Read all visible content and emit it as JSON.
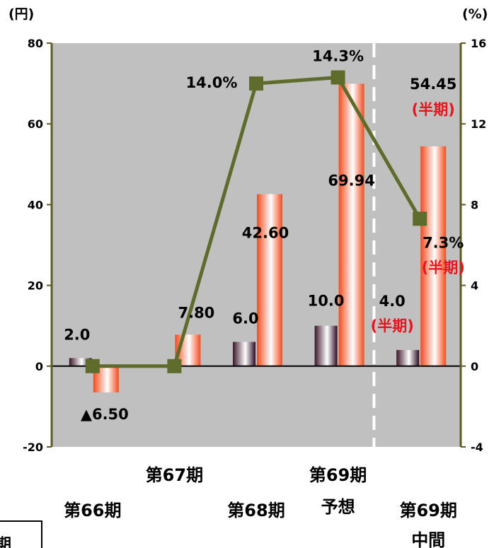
{
  "chart_data": {
    "type": "bar",
    "left_unit": "(円)",
    "right_unit": "(%)",
    "y_left": {
      "min": -20,
      "max": 80,
      "ticks": [
        "-20",
        "0",
        "20",
        "40",
        "60",
        "80"
      ]
    },
    "y_right": {
      "min": -4,
      "max": 16,
      "ticks": [
        "-4",
        "0",
        "4",
        "8",
        "12",
        "16"
      ]
    },
    "categories": [
      {
        "lines": [
          "第66期"
        ]
      },
      {
        "lines": [
          "第67期"
        ]
      },
      {
        "lines": [
          "第68期"
        ]
      },
      {
        "lines": [
          "第69期",
          "予想"
        ]
      },
      {
        "lines": [
          "第69期",
          "中間"
        ]
      }
    ],
    "series": [
      {
        "type": "bar",
        "axis": "left",
        "values": [
          2.0,
          null,
          6.0,
          10.0,
          4.0
        ],
        "labels": [
          "2.0",
          "",
          "6.0",
          "10.0",
          "4.0"
        ],
        "notes": [
          "",
          "",
          "",
          "",
          "(半期)"
        ]
      },
      {
        "type": "bar",
        "axis": "left",
        "values": [
          -6.5,
          7.8,
          42.6,
          69.94,
          54.45
        ],
        "labels": [
          "▲6.50",
          "7.80",
          "42.60",
          "69.94",
          "54.45"
        ],
        "notes": [
          "",
          "",
          "",
          "",
          "(半期)"
        ]
      },
      {
        "type": "line",
        "axis": "right",
        "values": [
          0,
          0,
          14.0,
          14.3,
          7.3
        ],
        "labels": [
          "",
          "",
          "14.0%",
          "14.3%",
          "7.3%"
        ],
        "notes": [
          "",
          "",
          "",
          "",
          "(半期)"
        ]
      }
    ],
    "divider_after_category": 3,
    "colors": {
      "plot_bg": "#c0c0c0",
      "line": "#5e6c2b",
      "marker": "#5e6c2b",
      "axis": "#5e5c23",
      "highlight": "#e8141e"
    }
  },
  "footer_stub_text": "期"
}
